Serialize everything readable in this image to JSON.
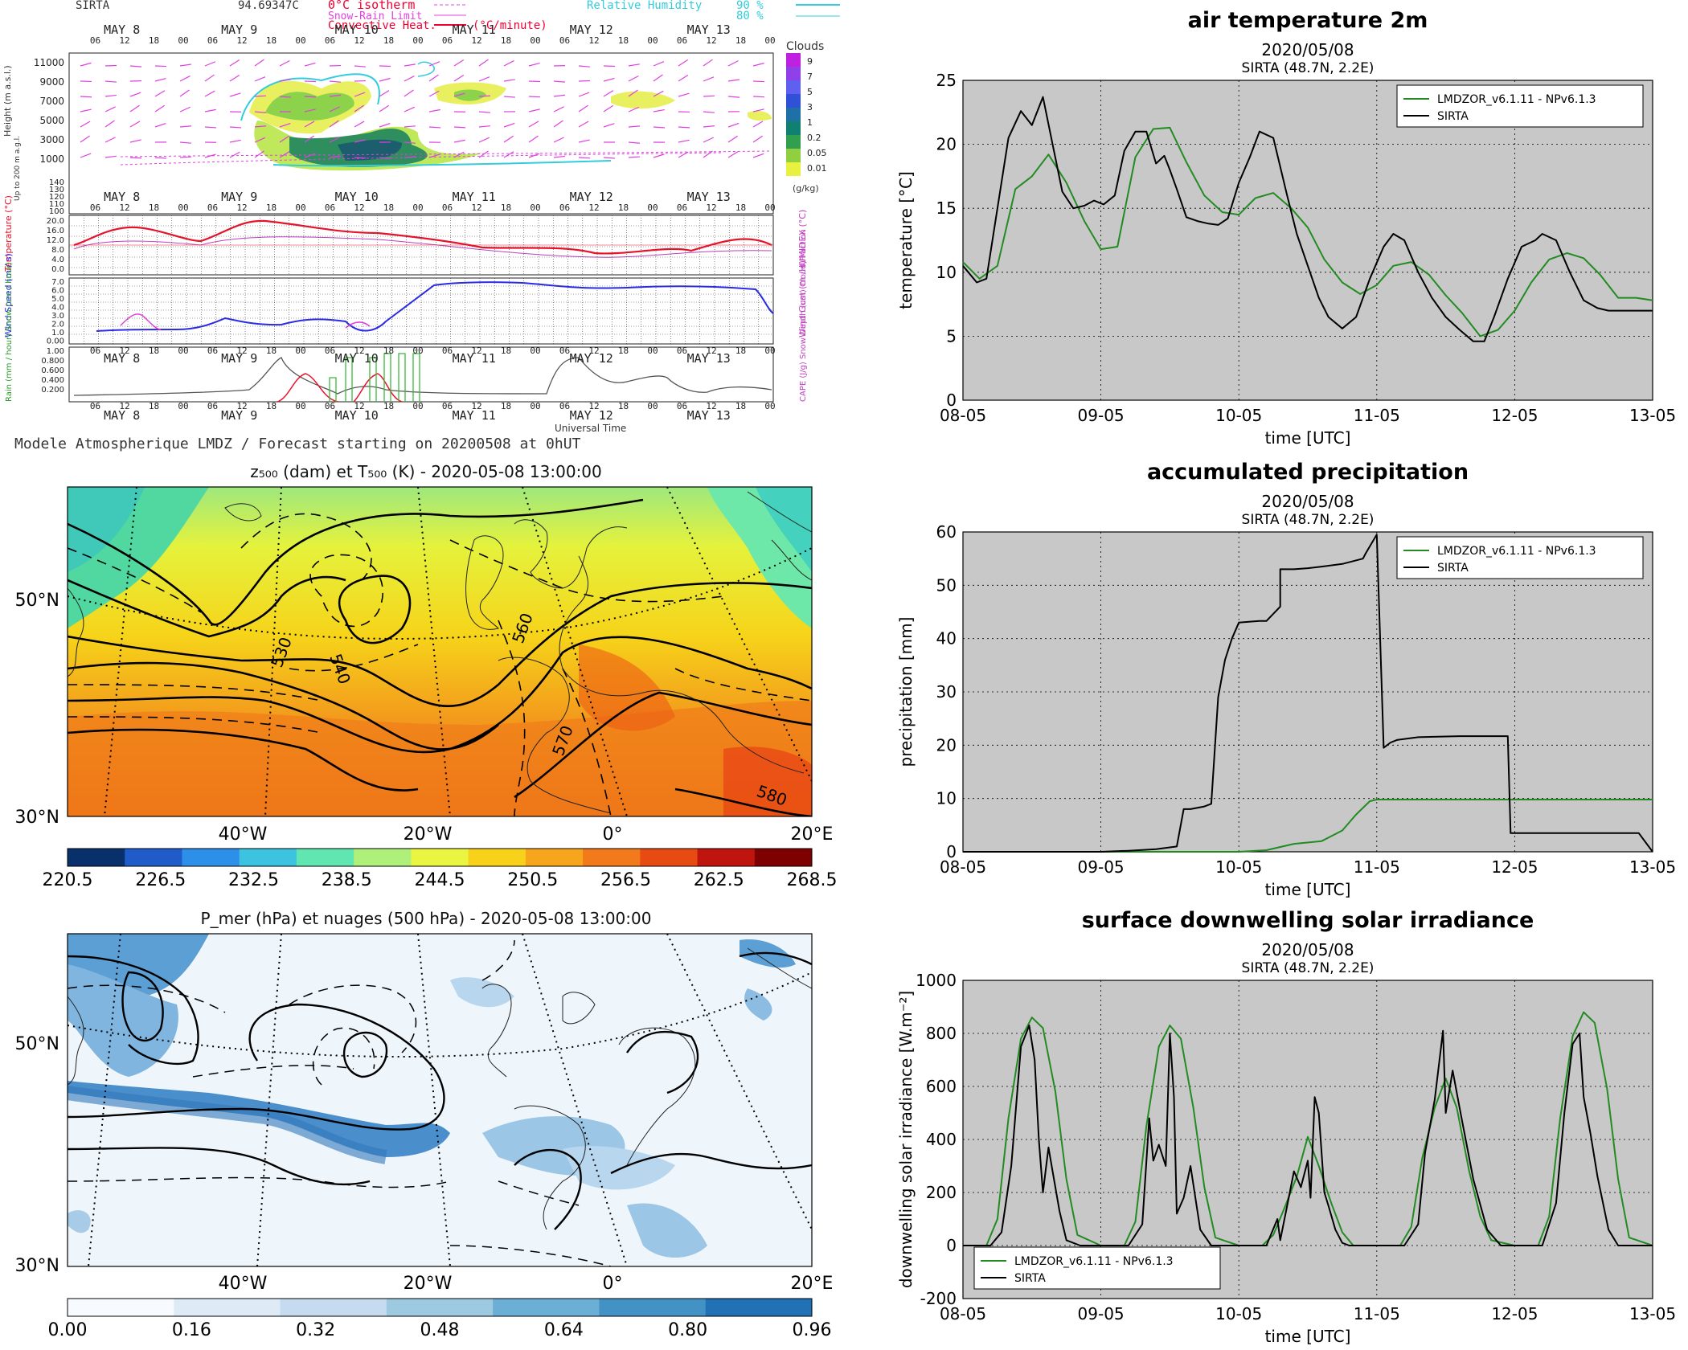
{
  "meteogram": {
    "station": "SIRTA",
    "station_value": "94.69347C",
    "legend": {
      "isotherm": "0°C isotherm",
      "snow_rain": "Snow-Rain Limit",
      "convective": "Convective Heat.",
      "convective_unit": "(°C/minute)",
      "rh_label": "Relative Humidity",
      "rh_90": "90 %",
      "rh_80": "80 %"
    },
    "days": [
      "MAY 8",
      "MAY 9",
      "MAY 10",
      "MAY 11",
      "MAY 12",
      "MAY 13"
    ],
    "hours": [
      "06",
      "12",
      "18",
      "00"
    ],
    "height_axis_label": "Height (m a.s.l.)",
    "height_ticks": [
      "11000",
      "9000",
      "7000",
      "5000",
      "3000",
      "1000"
    ],
    "low_axis_label": "Up to 200 m a.g.l.",
    "low_ticks": [
      "140",
      "130",
      "120",
      "110",
      "100"
    ],
    "clouds_title": "Clouds",
    "clouds_ticks": [
      "9",
      "7",
      "5",
      "3",
      "1",
      "0.2",
      "0.05",
      "0.01"
    ],
    "clouds_unit": "(g/kg)",
    "temp_label": "Temperature (°C)",
    "humidex_label": "HUMIDEX (°C)",
    "temp_ticks": [
      "20.0",
      "16.0",
      "12.0",
      "8.0",
      "4.0",
      "0.0"
    ],
    "wind_label": "Wind Speed (m / s)",
    "gust_label": "Wind Gust (m / s)",
    "wind_ticks": [
      "7.0",
      "6.0",
      "5.0",
      "4.0",
      "3.0",
      "2.0",
      "1.0",
      "0.00"
    ],
    "precip_label": "Rain (mm / hour) Snow (cm / hour)",
    "precip_ticks": [
      "1.00",
      "0.800",
      "0.600",
      "0.400",
      "0.200"
    ],
    "cape_label": "CAPE (J/g) Snow Depth (cm) Cloud Fraction",
    "universal_time": "Universal Time",
    "caption": "Modele Atmospherique LMDZ / Forecast starting on 20200508 at 0hUT"
  },
  "map_top": {
    "title": "z₅₀₀ (dam) et T₅₀₀ (K) - 2020-05-08 13:00:00",
    "lat_labels": [
      "50°N",
      "30°N"
    ],
    "lon_labels": [
      "40°W",
      "20°W",
      "0°",
      "20°E"
    ],
    "contour_labels": [
      "530",
      "540",
      "560",
      "570",
      "580"
    ],
    "colorbar_ticks": [
      "220.5",
      "226.5",
      "232.5",
      "238.5",
      "244.5",
      "250.5",
      "256.5",
      "262.5",
      "268.5"
    ],
    "colorbar_colors": [
      "#08306b",
      "#1f5cc9",
      "#2c8fe8",
      "#3cc3e0",
      "#60e6b0",
      "#aef07a",
      "#eaf542",
      "#f8d21a",
      "#f7a51c",
      "#f27a1a",
      "#e84b12",
      "#c0150e",
      "#7f0000"
    ]
  },
  "map_bottom": {
    "title": "P_mer (hPa) et nuages (500 hPa) - 2020-05-08 13:00:00",
    "lat_labels": [
      "50°N",
      "30°N"
    ],
    "lon_labels": [
      "40°W",
      "20°W",
      "0°",
      "20°E"
    ],
    "colorbar_ticks": [
      "0.00",
      "0.16",
      "0.32",
      "0.48",
      "0.64",
      "0.80",
      "0.96"
    ],
    "colorbar_colors": [
      "#f7fbff",
      "#deebf7",
      "#c6dbef",
      "#9ecae1",
      "#6baed6",
      "#4292c6",
      "#2171b5"
    ]
  },
  "chart_data": [
    {
      "type": "line",
      "title": "air temperature 2m",
      "subtitle": "2020/05/08",
      "subtitle2": "SIRTA (48.7N, 2.2E)",
      "xlabel": "time [UTC]",
      "ylabel": "temperature [°C]",
      "x_ticks": [
        "08-05",
        "09-05",
        "10-05",
        "11-05",
        "12-05",
        "13-05"
      ],
      "xlim": [
        0,
        5
      ],
      "ylim": [
        0,
        25
      ],
      "y_ticks": [
        0,
        5,
        10,
        15,
        20,
        25
      ],
      "grid": true,
      "legend_position": "top-right",
      "series": [
        {
          "name": "LMDZOR_v6.1.11 - NPv6.1.3",
          "color": "#228b22",
          "x": [
            0,
            0.12,
            0.25,
            0.38,
            0.5,
            0.62,
            0.75,
            0.88,
            1.0,
            1.12,
            1.25,
            1.38,
            1.5,
            1.62,
            1.75,
            1.88,
            2.0,
            2.12,
            2.25,
            2.38,
            2.5,
            2.62,
            2.75,
            2.88,
            3.0,
            3.12,
            3.25,
            3.38,
            3.5,
            3.62,
            3.75,
            3.88,
            4.0,
            4.12,
            4.25,
            4.38,
            4.5,
            4.62,
            4.75,
            4.88,
            5.0
          ],
          "y": [
            10.8,
            9.5,
            10.5,
            16.5,
            17.5,
            19.2,
            17.0,
            14.0,
            11.8,
            12.0,
            19.0,
            21.2,
            21.3,
            18.6,
            16.0,
            14.7,
            14.5,
            15.8,
            16.2,
            15.0,
            13.5,
            11.0,
            9.2,
            8.3,
            9.0,
            10.5,
            10.8,
            9.8,
            8.2,
            6.8,
            5.0,
            5.5,
            7.0,
            9.2,
            11.0,
            11.5,
            11.1,
            9.8,
            8.0,
            8.0,
            7.8
          ]
        },
        {
          "name": "SIRTA",
          "color": "#000000",
          "x": [
            0,
            0.1,
            0.17,
            0.25,
            0.33,
            0.42,
            0.5,
            0.58,
            0.65,
            0.72,
            0.8,
            0.88,
            0.95,
            1.02,
            1.1,
            1.17,
            1.25,
            1.33,
            1.4,
            1.46,
            1.5,
            1.55,
            1.62,
            1.7,
            1.78,
            1.85,
            1.92,
            2.0,
            2.08,
            2.15,
            2.25,
            2.35,
            2.42,
            2.5,
            2.58,
            2.65,
            2.75,
            2.85,
            2.95,
            3.05,
            3.12,
            3.2,
            3.3,
            3.4,
            3.5,
            3.6,
            3.7,
            3.78,
            3.85,
            3.95,
            4.05,
            4.15,
            4.2,
            4.3,
            4.4,
            4.5,
            4.6,
            4.68,
            4.75,
            4.82,
            4.9,
            5.0
          ],
          "y": [
            10.5,
            9.2,
            9.5,
            15.0,
            20.5,
            22.6,
            21.5,
            23.7,
            20.0,
            16.3,
            15.0,
            15.2,
            15.6,
            15.3,
            16.0,
            19.5,
            21.0,
            21.0,
            18.5,
            19.1,
            18.0,
            16.5,
            14.3,
            14.0,
            13.8,
            13.7,
            14.2,
            17.0,
            19.0,
            21.0,
            20.5,
            16.0,
            13.0,
            10.5,
            8.0,
            6.5,
            5.6,
            6.5,
            9.5,
            12.0,
            13.0,
            12.5,
            10.0,
            8.0,
            6.5,
            5.5,
            4.6,
            4.6,
            6.5,
            9.5,
            12.0,
            12.5,
            13.0,
            12.5,
            10.0,
            7.8,
            7.2,
            7.0,
            7.0,
            7.0,
            7.0,
            7.0
          ]
        }
      ]
    },
    {
      "type": "line",
      "title": "accumulated precipitation",
      "subtitle": "2020/05/08",
      "subtitle2": "SIRTA (48.7N, 2.2E)",
      "xlabel": "time [UTC]",
      "ylabel": "precipitation [mm]",
      "x_ticks": [
        "08-05",
        "09-05",
        "10-05",
        "11-05",
        "12-05",
        "13-05"
      ],
      "xlim": [
        0,
        5
      ],
      "ylim": [
        0,
        60
      ],
      "y_ticks": [
        0,
        10,
        20,
        30,
        40,
        50,
        60
      ],
      "grid": true,
      "legend_position": "top-right",
      "series": [
        {
          "name": "LMDZOR_v6.1.11 - NPv6.1.3",
          "color": "#228b22",
          "x": [
            0,
            2.0,
            2.2,
            2.4,
            2.6,
            2.75,
            2.85,
            2.95,
            3.0,
            5.0
          ],
          "y": [
            0,
            0,
            0.3,
            1.5,
            2.0,
            4.0,
            7.0,
            9.5,
            9.8,
            9.8
          ]
        },
        {
          "name": "SIRTA",
          "color": "#000000",
          "x": [
            0,
            0.8,
            1.0,
            1.2,
            1.4,
            1.55,
            1.6,
            1.65,
            1.75,
            1.8,
            1.85,
            1.9,
            1.95,
            2.0,
            2.1,
            2.15,
            2.2,
            2.3,
            2.3,
            2.4,
            2.5,
            2.6,
            2.75,
            2.9,
            2.92,
            3.0,
            3.05,
            3.1,
            3.15,
            3.3,
            3.6,
            3.85,
            3.95,
            3.97,
            4.3,
            4.6,
            4.9,
            5.0
          ],
          "y": [
            0,
            0,
            0,
            0.2,
            0.5,
            1.0,
            8.0,
            8.0,
            8.5,
            9.0,
            29.0,
            36.0,
            40.0,
            43.0,
            43.2,
            43.3,
            43.3,
            46.0,
            53.0,
            53.0,
            53.2,
            53.5,
            54.0,
            55.0,
            56.0,
            59.5,
            19.5,
            20.5,
            21.0,
            21.5,
            21.7,
            21.7,
            21.7,
            3.5,
            3.5,
            3.5,
            3.5,
            0.0
          ]
        }
      ]
    },
    {
      "type": "line",
      "title": "surface downwelling solar irradiance",
      "subtitle": "2020/05/08",
      "subtitle2": "SIRTA (48.7N, 2.2E)",
      "xlabel": "time [UTC]",
      "ylabel": "downwelling solar irradiance [W.m⁻²]",
      "x_ticks": [
        "08-05",
        "09-05",
        "10-05",
        "11-05",
        "12-05",
        "13-05"
      ],
      "xlim": [
        0,
        5
      ],
      "ylim": [
        -200,
        1000
      ],
      "y_ticks": [
        -200,
        0,
        200,
        400,
        600,
        800,
        1000
      ],
      "grid": true,
      "legend_position": "bottom-left",
      "series": [
        {
          "name": "LMDZOR_v6.1.11 - NPv6.1.3",
          "color": "#228b22",
          "x": [
            0,
            0.17,
            0.25,
            0.33,
            0.42,
            0.5,
            0.58,
            0.67,
            0.75,
            0.83,
            1.0,
            1.17,
            1.25,
            1.33,
            1.42,
            1.5,
            1.58,
            1.67,
            1.75,
            1.83,
            2.0,
            2.17,
            2.25,
            2.33,
            2.42,
            2.5,
            2.58,
            2.67,
            2.75,
            2.83,
            3.0,
            3.17,
            3.25,
            3.33,
            3.42,
            3.5,
            3.58,
            3.67,
            3.75,
            3.83,
            4.0,
            4.17,
            4.25,
            4.33,
            4.42,
            4.5,
            4.58,
            4.67,
            4.75,
            4.83,
            5.0
          ],
          "y": [
            0,
            0,
            100,
            480,
            780,
            860,
            820,
            580,
            250,
            40,
            0,
            0,
            90,
            450,
            750,
            830,
            780,
            520,
            220,
            30,
            0,
            0,
            40,
            140,
            260,
            410,
            300,
            160,
            50,
            0,
            0,
            0,
            70,
            330,
            520,
            630,
            520,
            280,
            110,
            20,
            0,
            0,
            110,
            480,
            790,
            880,
            840,
            590,
            250,
            30,
            0
          ]
        },
        {
          "name": "SIRTA",
          "color": "#000000",
          "x": [
            0,
            0.2,
            0.28,
            0.35,
            0.42,
            0.48,
            0.52,
            0.55,
            0.58,
            0.62,
            0.65,
            0.7,
            0.75,
            0.85,
            1.0,
            1.2,
            1.3,
            1.35,
            1.38,
            1.42,
            1.47,
            1.5,
            1.53,
            1.55,
            1.6,
            1.65,
            1.72,
            1.8,
            1.9,
            2.0,
            2.2,
            2.28,
            2.3,
            2.35,
            2.4,
            2.45,
            2.5,
            2.52,
            2.55,
            2.58,
            2.62,
            2.65,
            2.7,
            2.75,
            2.8,
            2.9,
            3.0,
            3.2,
            3.3,
            3.35,
            3.42,
            3.48,
            3.5,
            3.55,
            3.6,
            3.7,
            3.8,
            3.9,
            4.0,
            4.2,
            4.3,
            4.36,
            4.42,
            4.47,
            4.5,
            4.55,
            4.6,
            4.68,
            4.75,
            4.85,
            5.0
          ],
          "y": [
            0,
            0,
            50,
            300,
            750,
            830,
            700,
            400,
            200,
            370,
            280,
            130,
            20,
            0,
            0,
            0,
            80,
            480,
            320,
            380,
            300,
            800,
            560,
            120,
            180,
            300,
            60,
            0,
            0,
            0,
            0,
            100,
            20,
            150,
            280,
            220,
            320,
            180,
            560,
            500,
            200,
            150,
            60,
            10,
            0,
            0,
            0,
            0,
            80,
            350,
            550,
            810,
            500,
            660,
            520,
            250,
            60,
            0,
            0,
            0,
            160,
            500,
            760,
            800,
            560,
            420,
            260,
            60,
            0,
            0,
            0
          ]
        }
      ]
    }
  ]
}
